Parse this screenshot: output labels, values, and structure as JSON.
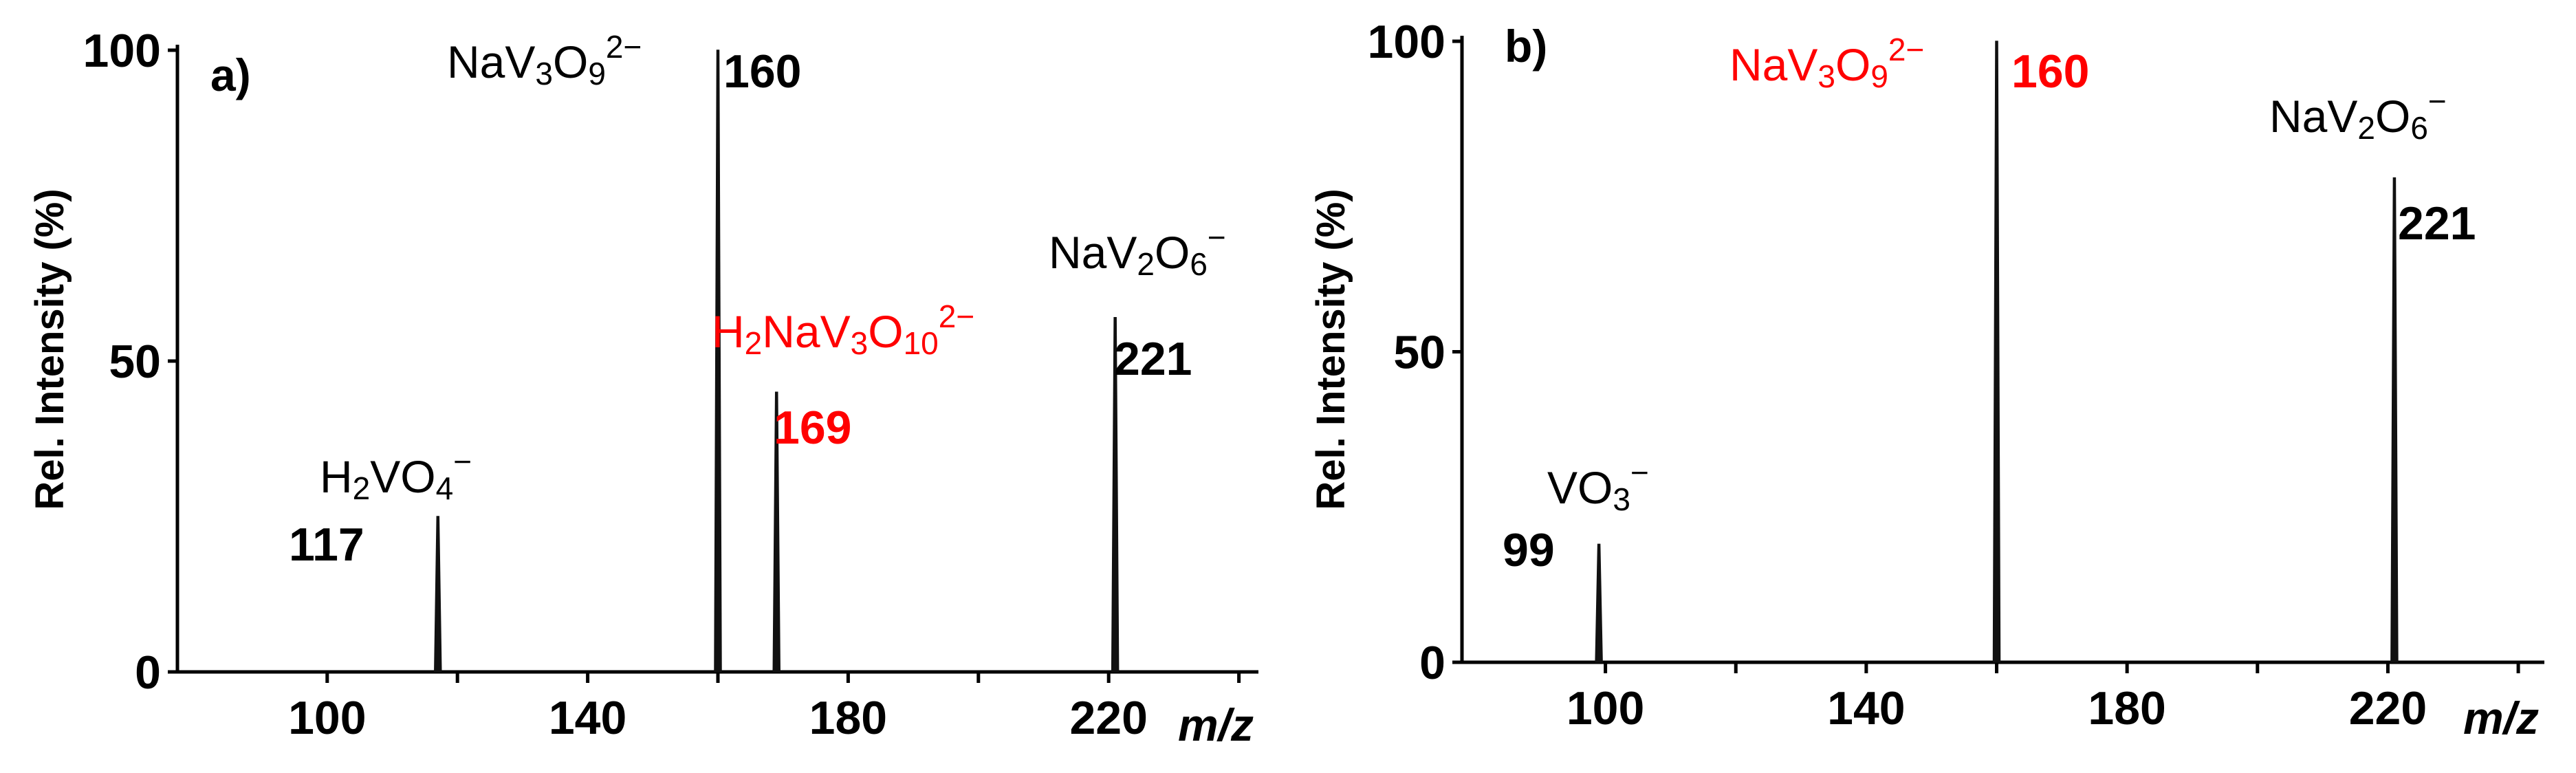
{
  "chart_data": [
    {
      "type": "line",
      "panel_label": "a)",
      "ylabel": "Rel. Intensity (%)",
      "xlabel": "m/z",
      "xlim": [
        77,
        243
      ],
      "ylim": [
        0,
        100
      ],
      "xticks": [
        100,
        140,
        180,
        220
      ],
      "xticks_minor": [
        120,
        160,
        200,
        240
      ],
      "yticks": [
        0,
        50,
        100
      ],
      "grid": false,
      "peaks": [
        {
          "x": 117,
          "y": 25,
          "formula": "H₂VO₄⁻",
          "label": "117",
          "color": "#000000"
        },
        {
          "x": 160,
          "y": 100,
          "formula": "NaV₃O₉²⁻",
          "label": "160",
          "color": "#000000"
        },
        {
          "x": 169,
          "y": 45,
          "formula": "H₂NaV₃O₁₀²⁻",
          "label": "169",
          "color": "#ff0000"
        },
        {
          "x": 221,
          "y": 57,
          "formula": "NaV₂O₆⁻",
          "label": "221",
          "color": "#000000"
        }
      ]
    },
    {
      "type": "line",
      "panel_label": "b)",
      "ylabel": "Rel. Intensity (%)",
      "xlabel": "m/z",
      "xlim": [
        78,
        244
      ],
      "ylim": [
        0,
        100
      ],
      "xticks": [
        100,
        140,
        180,
        220
      ],
      "xticks_minor": [
        120,
        160,
        200,
        240
      ],
      "yticks": [
        0,
        50,
        100
      ],
      "grid": false,
      "peaks": [
        {
          "x": 99,
          "y": 19,
          "formula": "VO₃⁻",
          "label": "99",
          "color": "#000000"
        },
        {
          "x": 160,
          "y": 100,
          "formula": "NaV₃O₉²⁻",
          "label": "160",
          "color": "#ff0000"
        },
        {
          "x": 221,
          "y": 78,
          "formula": "NaV₂O₆⁻",
          "label": "221",
          "color": "#000000"
        }
      ]
    }
  ]
}
